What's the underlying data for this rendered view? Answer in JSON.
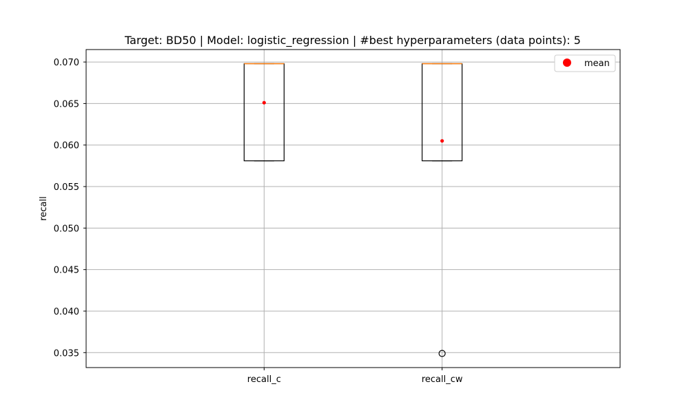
{
  "chart_data": {
    "type": "box",
    "title": "Target: BD50 | Model: logistic_regression | #best hyperparameters (data points): 5",
    "xlabel": "",
    "ylabel": "recall",
    "ylim": [
      0.0332,
      0.0715
    ],
    "yticks": [
      "0.035",
      "0.040",
      "0.045",
      "0.050",
      "0.055",
      "0.060",
      "0.065",
      "0.070"
    ],
    "grid": true,
    "legend": {
      "position": "top-right",
      "entries": [
        {
          "label": "mean",
          "color": "#ff0000",
          "marker": "circle"
        }
      ]
    },
    "categories": [
      "recall_c",
      "recall_cw"
    ],
    "boxes": [
      {
        "label": "recall_c",
        "q1": 0.0581,
        "median": 0.0698,
        "q3": 0.0698,
        "whisker_low": 0.0581,
        "whisker_high": 0.0698,
        "mean": 0.0651,
        "outliers": []
      },
      {
        "label": "recall_cw",
        "q1": 0.0581,
        "median": 0.0698,
        "q3": 0.0698,
        "whisker_low": 0.0581,
        "whisker_high": 0.0698,
        "mean": 0.0605,
        "outliers": [
          0.0349
        ]
      }
    ],
    "colors": {
      "median": "#ff7f0e",
      "mean": "#ff0000",
      "box": "#000000",
      "grid": "#b0b0b0"
    }
  }
}
